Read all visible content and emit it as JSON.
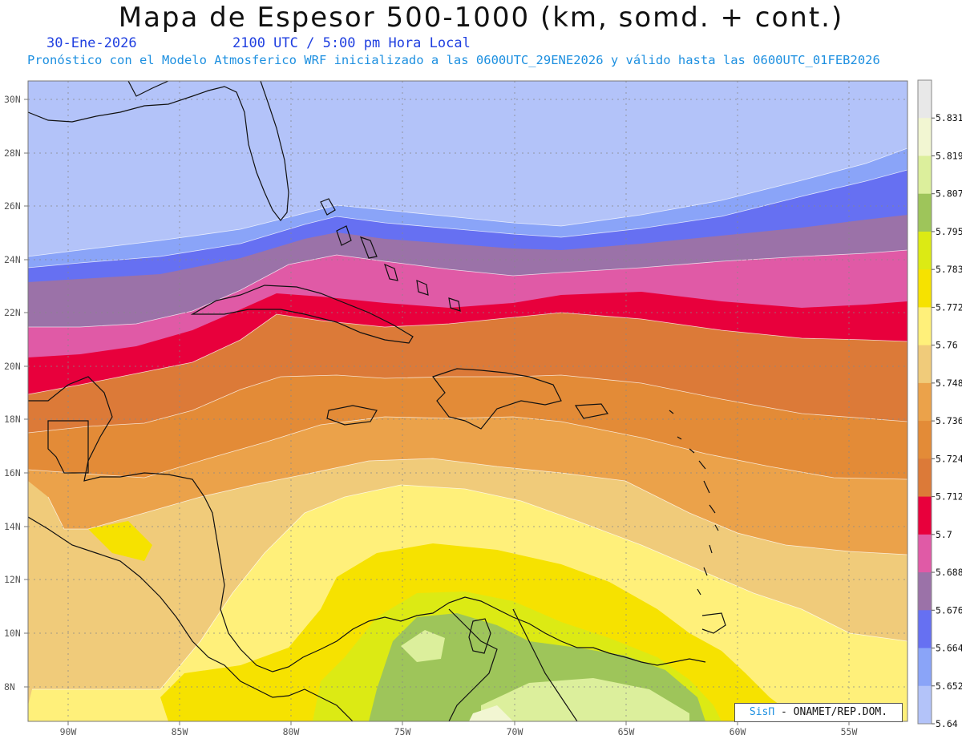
{
  "title": "Mapa de Espesor 500-1000 (km, somd. + cont.)",
  "date": "30-Ene-2026",
  "time": "2100 UTC / 5:00 pm Hora Local",
  "forecast": "Pronóstico con el Modelo Atmosferico WRF inicializado a las 0600UTC_29ENE2026 y válido hasta las  0600UTC_01FEB2026",
  "lat_labels": [
    "30N",
    "28N",
    "26N",
    "24N",
    "22N",
    "20N",
    "18N",
    "16N",
    "14N",
    "12N",
    "10N",
    "8N"
  ],
  "lon_labels": [
    "90W",
    "85W",
    "80W",
    "75W",
    "70W",
    "65W",
    "60W",
    "55W"
  ],
  "colorbar": {
    "labels": [
      "5.831",
      "5.819",
      "5.807",
      "5.795",
      "5.783",
      "5.772",
      "5.76",
      "5.748",
      "5.736",
      "5.724",
      "5.712",
      "5.7",
      "5.688",
      "5.676",
      "5.664",
      "5.652",
      "5.64"
    ],
    "colors": [
      "#e8e8e8",
      "#f2f6d2",
      "#dcef9c",
      "#9ec55a",
      "#dcea14",
      "#f6e200",
      "#fff07a",
      "#f0cb7a",
      "#eba24a",
      "#e38b37",
      "#dc7a38",
      "#e8003c",
      "#e05aa6",
      "#9b72a8",
      "#6670f2",
      "#8aa4f8",
      "#b3c3f9"
    ]
  },
  "credit": {
    "sis": "SisΠ",
    "text": " - ONAMET/REP.DOM."
  }
}
